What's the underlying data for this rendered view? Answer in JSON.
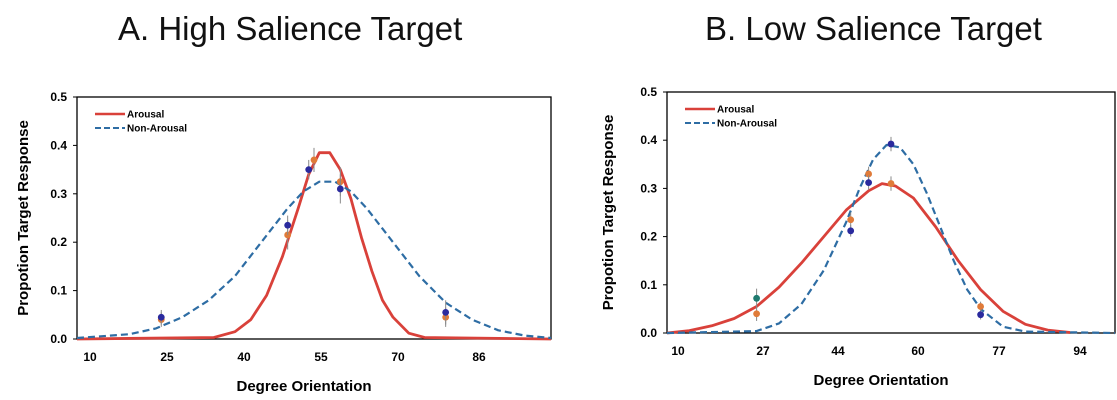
{
  "chart_data": [
    {
      "type": "line",
      "title": "A. High Salience Target",
      "xlabel": "Degree Orientation",
      "ylabel": "Propotion Target Response",
      "xlim": [
        10,
        100
      ],
      "ylim": [
        0,
        0.5
      ],
      "x_tick_labels": [
        "10",
        "25",
        "40",
        "55",
        "70",
        "86"
      ],
      "y_tick_labels": [
        "0.0",
        "0.1",
        "0.2",
        "0.3",
        "0.4",
        "0.5"
      ],
      "legend_position": "top-left",
      "grid": false,
      "series": [
        {
          "name": "Arousal",
          "color": "#d9413a",
          "style": "solid",
          "x": [
            10,
            36,
            40,
            43,
            46,
            49,
            52,
            54,
            56,
            58,
            60,
            62,
            64,
            66,
            68,
            70,
            73,
            76,
            100
          ],
          "y": [
            0.0,
            0.003,
            0.015,
            0.04,
            0.09,
            0.17,
            0.27,
            0.34,
            0.385,
            0.385,
            0.35,
            0.29,
            0.21,
            0.14,
            0.08,
            0.045,
            0.012,
            0.003,
            0.0
          ],
          "points": [
            {
              "x": 26,
              "y": 0.04,
              "err": 0.015,
              "color": "#e07b39"
            },
            {
              "x": 50,
              "y": 0.215,
              "err": 0.03,
              "color": "#e07b39"
            },
            {
              "x": 55,
              "y": 0.37,
              "err": 0.025,
              "color": "#e07b39"
            },
            {
              "x": 60,
              "y": 0.325,
              "err": 0.03,
              "color": "#e07b39"
            },
            {
              "x": 80,
              "y": 0.045,
              "err": 0.02,
              "color": "#e07b39"
            }
          ]
        },
        {
          "name": "Non-Arousal",
          "color": "#2e6da4",
          "style": "dashed",
          "x": [
            10,
            20,
            25,
            30,
            35,
            40,
            45,
            50,
            53,
            56,
            59,
            62,
            65,
            70,
            75,
            80,
            85,
            90,
            95,
            100
          ],
          "y": [
            0.002,
            0.01,
            0.022,
            0.045,
            0.08,
            0.13,
            0.2,
            0.27,
            0.305,
            0.325,
            0.325,
            0.305,
            0.27,
            0.2,
            0.13,
            0.075,
            0.04,
            0.018,
            0.007,
            0.002
          ],
          "points": [
            {
              "x": 26,
              "y": 0.045,
              "err": 0.015,
              "color": "#2a2a9e"
            },
            {
              "x": 50,
              "y": 0.235,
              "err": 0.02,
              "color": "#2a2a9e"
            },
            {
              "x": 54,
              "y": 0.35,
              "err": 0.02,
              "color": "#2a2a9e"
            },
            {
              "x": 60,
              "y": 0.31,
              "err": 0.03,
              "color": "#2a2a9e"
            },
            {
              "x": 80,
              "y": 0.055,
              "err": 0.025,
              "color": "#2a2a9e"
            }
          ]
        }
      ]
    },
    {
      "type": "line",
      "title": "B. Low Salience Target",
      "xlabel": "Degree Orientation",
      "ylabel": "Propotion Target Response",
      "xlim": [
        10,
        110
      ],
      "ylim": [
        0,
        0.5
      ],
      "x_tick_labels": [
        "10",
        "27",
        "44",
        "60",
        "77",
        "94"
      ],
      "y_tick_labels": [
        "0.0",
        "0.1",
        "0.2",
        "0.3",
        "0.4",
        "0.5"
      ],
      "legend_position": "top-left",
      "grid": false,
      "series": [
        {
          "name": "Arousal",
          "color": "#d9413a",
          "style": "solid",
          "x": [
            10,
            15,
            20,
            25,
            30,
            35,
            40,
            45,
            50,
            55,
            58,
            61,
            65,
            70,
            75,
            80,
            85,
            90,
            95,
            100
          ],
          "y": [
            0.0,
            0.005,
            0.015,
            0.03,
            0.055,
            0.095,
            0.145,
            0.2,
            0.255,
            0.295,
            0.31,
            0.305,
            0.28,
            0.22,
            0.15,
            0.09,
            0.045,
            0.018,
            0.006,
            0.001
          ],
          "points": [
            {
              "x": 30,
              "y": 0.04,
              "err": 0.015,
              "color": "#e07b39"
            },
            {
              "x": 51,
              "y": 0.235,
              "err": 0.015,
              "color": "#e07b39"
            },
            {
              "x": 55,
              "y": 0.33,
              "err": 0.015,
              "color": "#e07b39"
            },
            {
              "x": 60,
              "y": 0.31,
              "err": 0.015,
              "color": "#e07b39"
            },
            {
              "x": 80,
              "y": 0.055,
              "err": 0.01,
              "color": "#e07b39"
            }
          ]
        },
        {
          "name": "Non-Arousal",
          "color": "#2e6da4",
          "style": "dashed",
          "x": [
            10,
            30,
            35,
            40,
            45,
            50,
            53,
            56,
            59,
            62,
            65,
            68,
            71,
            74,
            77,
            80,
            85,
            90,
            110
          ],
          "y": [
            0.0,
            0.004,
            0.02,
            0.06,
            0.13,
            0.23,
            0.3,
            0.36,
            0.39,
            0.385,
            0.35,
            0.29,
            0.22,
            0.15,
            0.09,
            0.05,
            0.013,
            0.003,
            0.0
          ],
          "points": [
            {
              "x": 30,
              "y": 0.072,
              "err": 0.02,
              "color": "#1f7a6f"
            },
            {
              "x": 51,
              "y": 0.212,
              "err": 0.012,
              "color": "#2a2a9e"
            },
            {
              "x": 55,
              "y": 0.312,
              "err": 0.015,
              "color": "#2a2a9e"
            },
            {
              "x": 60,
              "y": 0.392,
              "err": 0.015,
              "color": "#2a2a9e"
            },
            {
              "x": 80,
              "y": 0.038,
              "err": 0.01,
              "color": "#2a2a9e"
            }
          ]
        }
      ]
    }
  ]
}
